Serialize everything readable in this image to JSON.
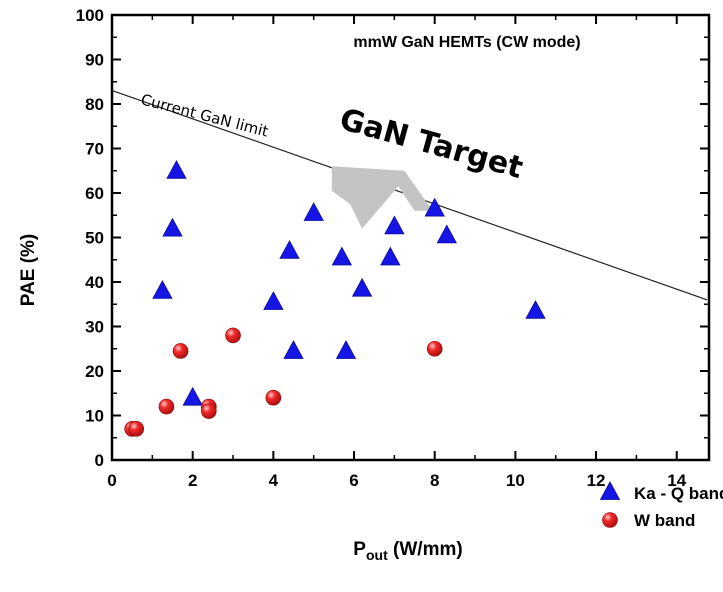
{
  "chart_data": {
    "type": "scatter",
    "title": "mmW GaN HEMTs (CW mode)",
    "xlabel_main": "P",
    "xlabel_sub": "out",
    "xlabel_unit": " (W/mm)",
    "ylabel": "PAE (%)",
    "xlim": [
      0,
      14.8
    ],
    "ylim": [
      0,
      100
    ],
    "x_ticks": [
      0,
      2,
      4,
      6,
      8,
      10,
      12,
      14
    ],
    "y_ticks": [
      0,
      10,
      20,
      30,
      40,
      50,
      60,
      70,
      80,
      90,
      100
    ],
    "series": [
      {
        "name": "Ka - Q band",
        "marker": "triangle",
        "color": "#1515e6",
        "points": [
          [
            1.6,
            65
          ],
          [
            1.5,
            52
          ],
          [
            1.25,
            38
          ],
          [
            2.0,
            14
          ],
          [
            4.0,
            35.5
          ],
          [
            4.4,
            47
          ],
          [
            4.5,
            24.5
          ],
          [
            5.0,
            55.5
          ],
          [
            5.7,
            45.5
          ],
          [
            5.8,
            24.5
          ],
          [
            6.2,
            38.5
          ],
          [
            6.9,
            45.5
          ],
          [
            7.0,
            52.5
          ],
          [
            8.0,
            56.5
          ],
          [
            8.3,
            50.5
          ],
          [
            10.5,
            33.5
          ]
        ]
      },
      {
        "name": "W band",
        "marker": "sphere",
        "color": "#e11d1d",
        "points": [
          [
            0.5,
            7
          ],
          [
            0.6,
            7
          ],
          [
            1.35,
            12
          ],
          [
            1.7,
            24.5
          ],
          [
            2.4,
            12
          ],
          [
            2.4,
            11
          ],
          [
            3.0,
            28
          ],
          [
            4.0,
            14
          ],
          [
            8.0,
            25
          ]
        ]
      }
    ],
    "limit_line": {
      "label": "Current GaN limit",
      "from": [
        -0.3,
        84
      ],
      "to": [
        14.75,
        36
      ]
    },
    "target": {
      "label": "GaN Target",
      "arrow_polygon": [
        [
          5.45,
          66
        ],
        [
          7.25,
          65
        ],
        [
          7.95,
          56
        ],
        [
          7.5,
          56
        ],
        [
          7.1,
          61.5
        ],
        [
          6.2,
          52
        ],
        [
          5.9,
          57.5
        ],
        [
          5.45,
          60.5
        ]
      ],
      "arrow_color": "#c4c4c4"
    },
    "legend_position": "bottom-right",
    "grid": false
  }
}
